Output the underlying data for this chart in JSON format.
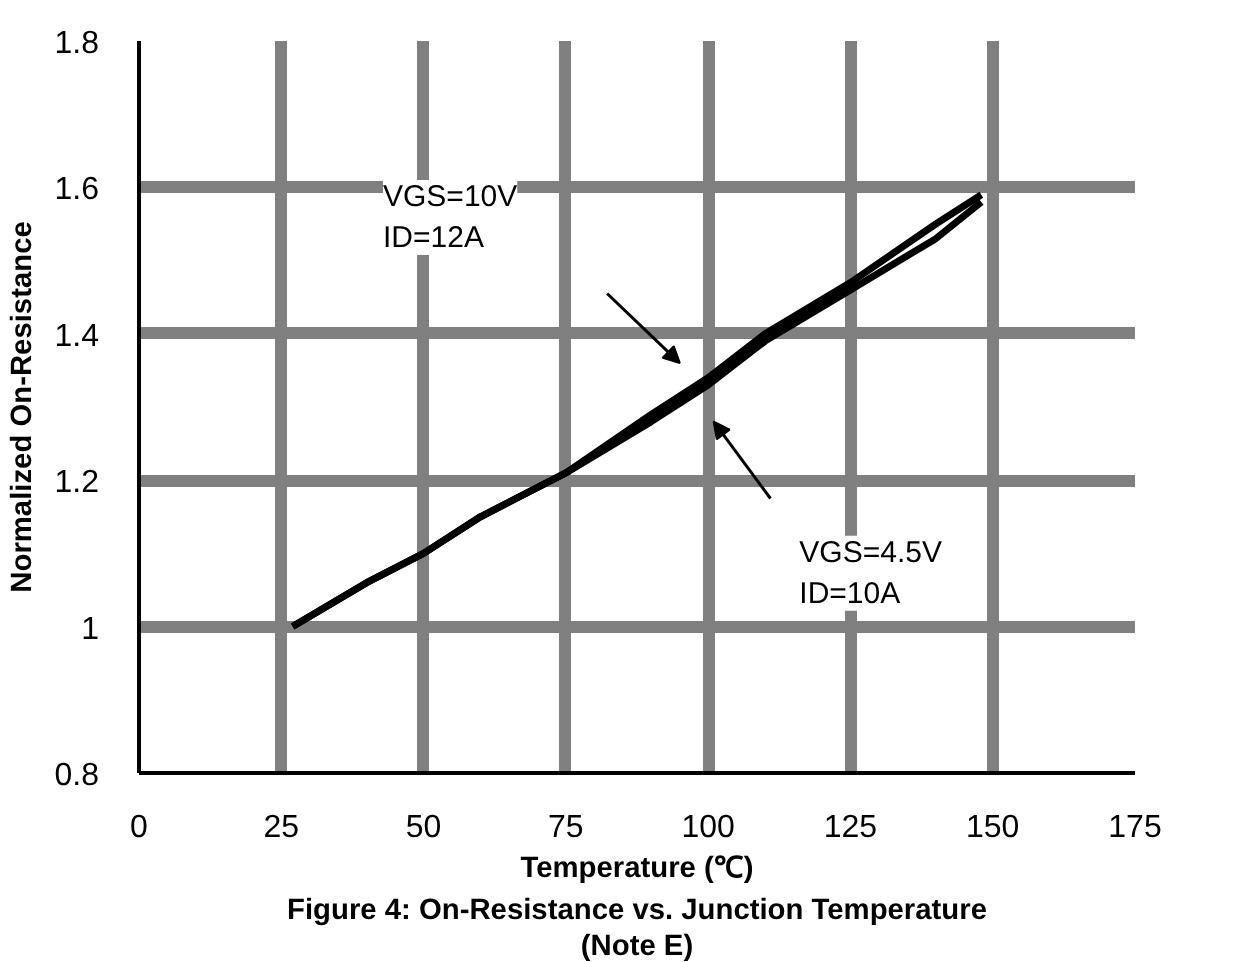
{
  "chart_data": {
    "type": "line",
    "title": "Figure 4: On-Resistance vs. Junction Temperature\n(Note E)",
    "xlabel": "Temperature (℃)",
    "ylabel": "Normalized On-Resistance",
    "x": [
      27,
      40,
      50,
      60,
      75,
      90,
      100,
      110,
      125,
      140,
      148
    ],
    "series": [
      {
        "color": "#000000",
        "values": [
          1.0,
          1.06,
          1.1,
          1.15,
          1.21,
          1.29,
          1.34,
          1.4,
          1.47,
          1.55,
          1.59
        ]
      },
      {
        "color": "#000000",
        "values": [
          1.0,
          1.06,
          1.1,
          1.15,
          1.21,
          1.28,
          1.33,
          1.39,
          1.46,
          1.53,
          1.58
        ]
      }
    ],
    "xlim": [
      0,
      175
    ],
    "xticks": [
      0,
      25,
      50,
      75,
      100,
      125,
      150,
      175
    ],
    "ylim": [
      0.8,
      1.8
    ],
    "yticks": [
      0.8,
      1.0,
      1.2,
      1.4,
      1.6,
      1.8
    ],
    "grid": true,
    "marker": "none",
    "line_style": "solid",
    "annotations": [
      "VGS=10V\nID=12A",
      "VGS=4.5V\nID=10A"
    ]
  }
}
